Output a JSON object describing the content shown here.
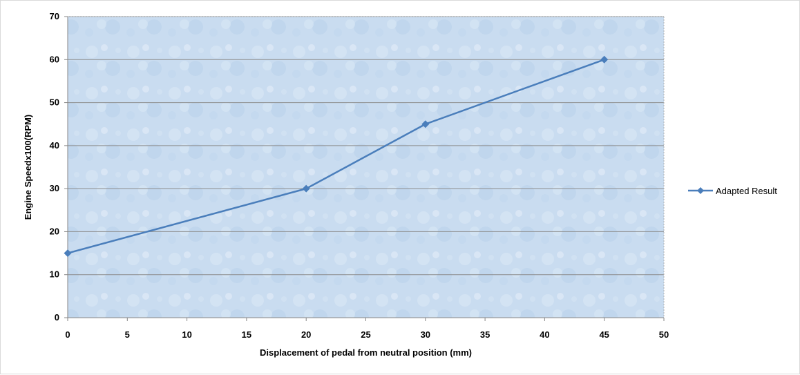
{
  "chart_data": {
    "type": "line",
    "title": "",
    "xlabel": "Displacement of pedal from neutral position (mm)",
    "ylabel": "Engine Speedx100(RPM)",
    "xlim": [
      0,
      50
    ],
    "ylim": [
      0,
      70
    ],
    "x_ticks": [
      "0",
      "5",
      "10",
      "15",
      "20",
      "25",
      "30",
      "35",
      "40",
      "45",
      "50"
    ],
    "y_ticks": [
      "0",
      "10",
      "20",
      "30",
      "40",
      "50",
      "60",
      "70"
    ],
    "grid": "horizontal",
    "legend": "right",
    "series": [
      {
        "name": "Adapted Result",
        "color": "#4a7ebb",
        "marker": "diamond",
        "x": [
          0,
          20,
          30,
          45
        ],
        "y": [
          15,
          30,
          45,
          60
        ]
      }
    ]
  }
}
